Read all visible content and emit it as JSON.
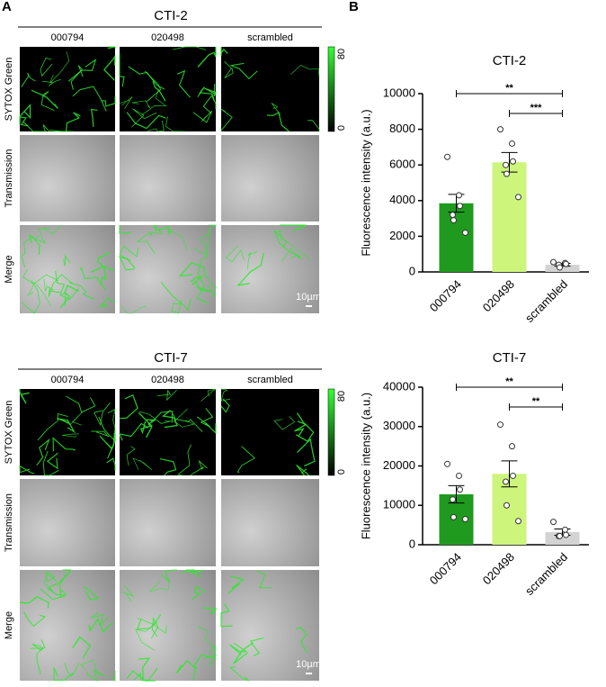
{
  "panel_a": {
    "label": "A",
    "groups": [
      {
        "title": "CTI-2",
        "columns": [
          "000794",
          "020498",
          "scrambled"
        ],
        "rows": [
          "SYTOX Green",
          "Transmission",
          "Merge"
        ],
        "colorbar": [
          "80",
          "0"
        ],
        "scale": "10µm"
      },
      {
        "title": "CTI-7",
        "columns": [
          "000794",
          "020498",
          "scrambled"
        ],
        "rows": [
          "SYTOX Green",
          "Transmission",
          "Merge"
        ],
        "colorbar": [
          "80",
          "0"
        ],
        "scale": "10µm"
      }
    ]
  },
  "panel_b": {
    "label": "B"
  },
  "chart_data": [
    {
      "type": "bar",
      "title": "CTI-2",
      "y_label": "Fluorescence intensity (a.u.)",
      "categories": [
        "000794",
        "020498",
        "scrambled"
      ],
      "colors": [
        "#1f9a1f",
        "#cdf57c",
        "#d3d3d3"
      ],
      "values": [
        3850,
        6150,
        400
      ],
      "errors": [
        500,
        550,
        80
      ],
      "points": [
        [
          6450,
          4300,
          3700,
          3200,
          2900,
          2200
        ],
        [
          8000,
          7200,
          6200,
          6000,
          5500,
          4200
        ],
        [
          550,
          500,
          450,
          400,
          250
        ]
      ],
      "ylim": [
        0,
        10000
      ],
      "yticks": [
        0,
        2000,
        4000,
        6000,
        8000,
        10000
      ],
      "annotations": [
        "**",
        "***"
      ]
    },
    {
      "type": "bar",
      "title": "CTI-7",
      "y_label": "Fluorescence intensity (a.u.)",
      "categories": [
        "000794",
        "020498",
        "scrambled"
      ],
      "colors": [
        "#1f9a1f",
        "#cdf57c",
        "#d3d3d3"
      ],
      "values": [
        12800,
        18000,
        3200
      ],
      "errors": [
        2200,
        3300,
        800
      ],
      "points": [
        [
          20500,
          17500,
          14000,
          11500,
          7000,
          6500
        ],
        [
          30500,
          25000,
          17500,
          16000,
          10000,
          6000
        ],
        [
          5800,
          3800,
          2500,
          2200,
          2200
        ]
      ],
      "ylim": [
        0,
        40000
      ],
      "yticks": [
        0,
        10000,
        20000,
        30000,
        40000
      ],
      "annotations": [
        "**",
        "**"
      ]
    }
  ]
}
